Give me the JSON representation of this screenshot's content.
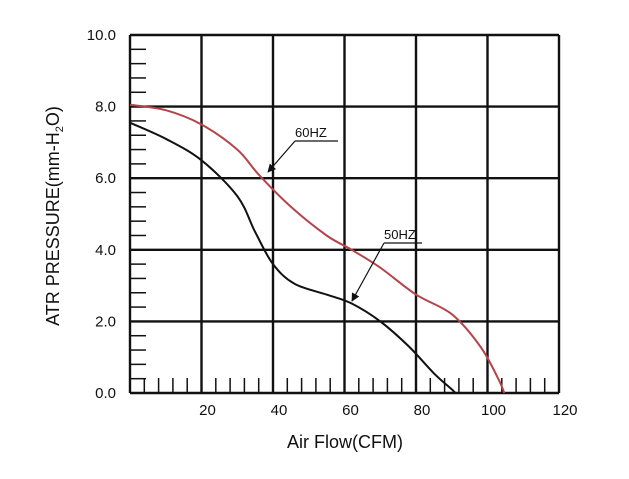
{
  "chart_data": {
    "type": "line",
    "title": "",
    "xlabel": "Air Flow(CFM)",
    "ylabel_parts": {
      "main": "ATR PRESSURE(mm-H",
      "sub": "2",
      "end": "O)"
    },
    "xlim": [
      0,
      120
    ],
    "ylim": [
      0,
      10
    ],
    "x_ticks": [
      "20",
      "40",
      "60",
      "80",
      "100",
      "120"
    ],
    "y_ticks": [
      "0.0",
      "2.0",
      "4.0",
      "6.0",
      "8.0",
      "10.0"
    ],
    "grid": true,
    "series": [
      {
        "name": "60HZ",
        "color": "#b5444a",
        "x": [
          0,
          10,
          20,
          30,
          36,
          45,
          55,
          62,
          70,
          80,
          90,
          98,
          103,
          104.7
        ],
        "y": [
          8.05,
          7.9,
          7.5,
          6.8,
          6.1,
          5.2,
          4.4,
          4.0,
          3.5,
          2.75,
          2.2,
          1.3,
          0.4,
          0.0
        ]
      },
      {
        "name": "50HZ",
        "color": "#111111",
        "x": [
          0,
          10,
          20,
          30,
          35,
          40,
          46,
          55,
          62,
          70,
          78,
          85,
          90,
          91
        ],
        "y": [
          7.55,
          7.1,
          6.5,
          5.5,
          4.5,
          3.6,
          3.05,
          2.75,
          2.5,
          2.0,
          1.3,
          0.55,
          0.1,
          0.0
        ]
      }
    ],
    "annotations": [
      {
        "text": "60HZ",
        "series": "60HZ"
      },
      {
        "text": "50HZ",
        "series": "50HZ"
      }
    ]
  }
}
